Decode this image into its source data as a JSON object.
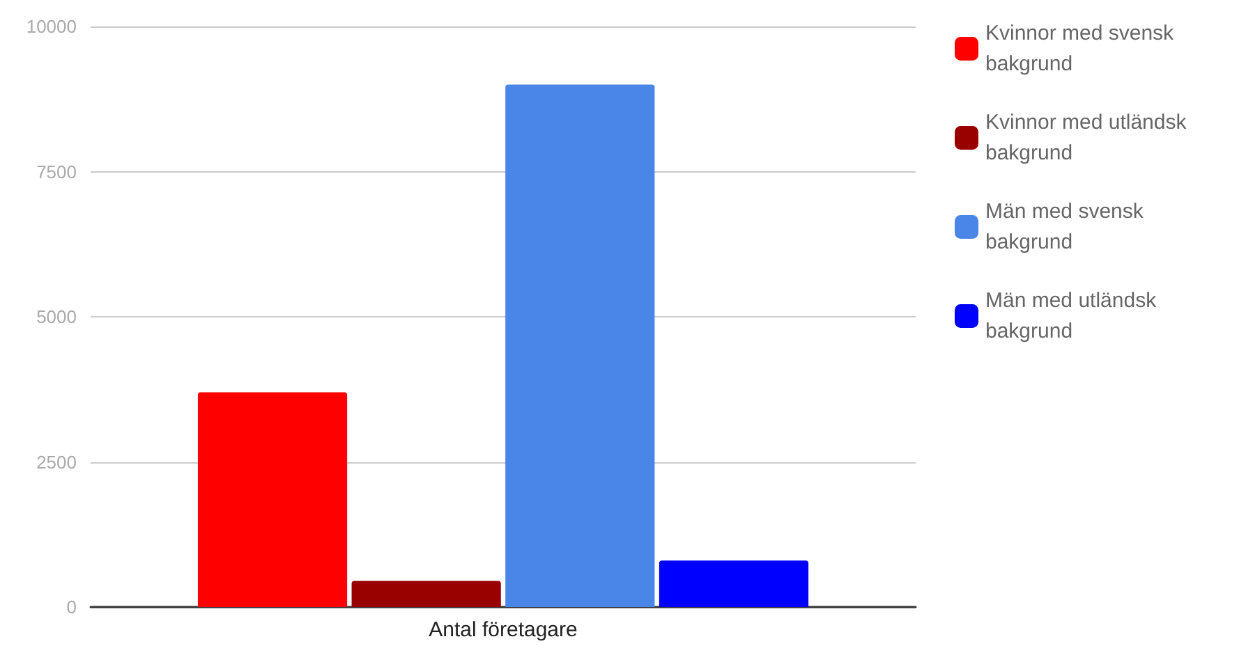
{
  "chart_data": {
    "type": "bar",
    "categories": [
      "Antal företagare"
    ],
    "series": [
      {
        "name": "Kvinnor med svensk\nbakgrund",
        "color": "#ff0000",
        "values": [
          3700
        ]
      },
      {
        "name": "Kvinnor med utländsk\nbakgrund",
        "color": "#990000",
        "values": [
          450
        ]
      },
      {
        "name": "Män med svensk\nbakgrund",
        "color": "#4a86e8",
        "values": [
          9000
        ]
      },
      {
        "name": "Män med utländsk\nbakgrund",
        "color": "#0000ff",
        "values": [
          800
        ]
      }
    ],
    "ylim": [
      0,
      10000
    ],
    "yticks": [
      0,
      2500,
      5000,
      7500,
      10000
    ],
    "grid": "y",
    "legend": "top right"
  }
}
